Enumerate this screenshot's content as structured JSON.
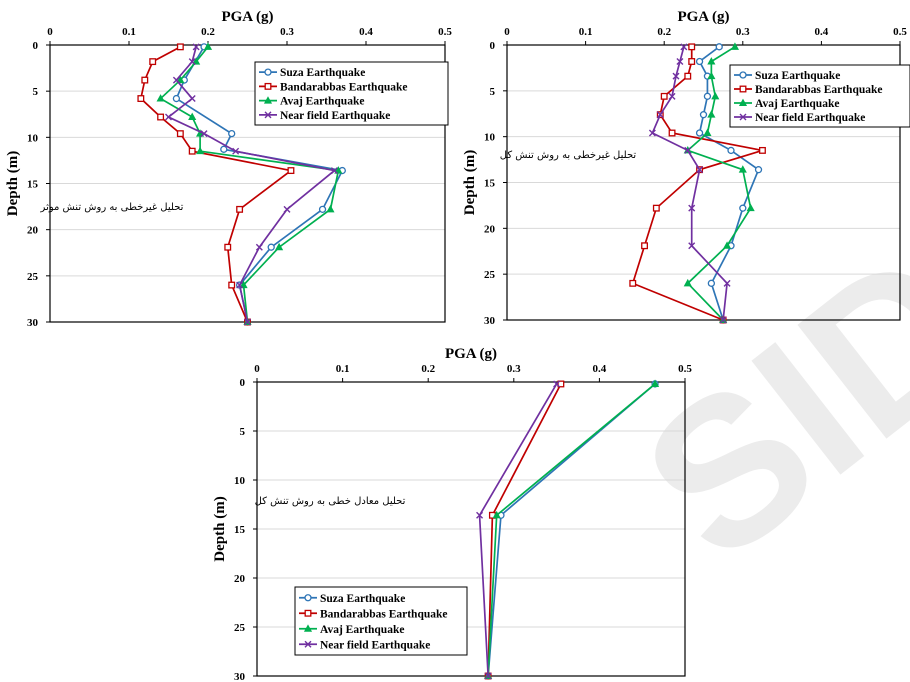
{
  "watermark": "SID",
  "chart_data": [
    {
      "type": "line",
      "xlabel": "PGA (g)",
      "ylabel": "Depth (m)",
      "xlim": [
        0,
        0.5
      ],
      "ylim": [
        0,
        30
      ],
      "y_reversed": true,
      "xticks": [
        "0",
        "0.1",
        "0.2",
        "0.3",
        "0.4",
        "0.5"
      ],
      "yticks": [
        "0",
        "5",
        "10",
        "15",
        "20",
        "25",
        "30"
      ],
      "annotation": "تحلیل غیرخطی به روش تنش موثر",
      "legend_position": "top-right",
      "series": [
        {
          "name": "Suza Earthquake",
          "color": "#2e75b6",
          "marker": "circle",
          "points": [
            [
              0.195,
              0.2
            ],
            [
              0.17,
              3.8
            ],
            [
              0.16,
              5.8
            ],
            [
              0.23,
              9.6
            ],
            [
              0.22,
              11.3
            ],
            [
              0.37,
              13.6
            ],
            [
              0.345,
              17.8
            ],
            [
              0.28,
              21.9
            ],
            [
              0.24,
              26
            ],
            [
              0.25,
              30
            ]
          ]
        },
        {
          "name": "Bandarabbas Earthquake",
          "color": "#c00000",
          "marker": "square",
          "points": [
            [
              0.165,
              0.2
            ],
            [
              0.13,
              1.8
            ],
            [
              0.12,
              3.8
            ],
            [
              0.115,
              5.8
            ],
            [
              0.14,
              7.8
            ],
            [
              0.165,
              9.6
            ],
            [
              0.18,
              11.5
            ],
            [
              0.305,
              13.6
            ],
            [
              0.24,
              17.8
            ],
            [
              0.225,
              21.9
            ],
            [
              0.23,
              26
            ],
            [
              0.25,
              30
            ]
          ]
        },
        {
          "name": "Avaj Earthquake",
          "color": "#00b050",
          "marker": "triangle",
          "points": [
            [
              0.2,
              0.2
            ],
            [
              0.185,
              1.8
            ],
            [
              0.165,
              3.8
            ],
            [
              0.14,
              5.8
            ],
            [
              0.18,
              7.8
            ],
            [
              0.19,
              9.6
            ],
            [
              0.19,
              11.5
            ],
            [
              0.365,
              13.6
            ],
            [
              0.355,
              17.8
            ],
            [
              0.29,
              21.9
            ],
            [
              0.245,
              26
            ],
            [
              0.25,
              30
            ]
          ]
        },
        {
          "name": "Near field Earthquake",
          "color": "#7030a0",
          "marker": "x",
          "points": [
            [
              0.185,
              0.2
            ],
            [
              0.18,
              1.8
            ],
            [
              0.16,
              3.8
            ],
            [
              0.18,
              5.8
            ],
            [
              0.15,
              7.8
            ],
            [
              0.195,
              9.6
            ],
            [
              0.235,
              11.5
            ],
            [
              0.36,
              13.6
            ],
            [
              0.3,
              17.8
            ],
            [
              0.265,
              21.9
            ],
            [
              0.24,
              26
            ],
            [
              0.25,
              30
            ]
          ]
        }
      ]
    },
    {
      "type": "line",
      "xlabel": "PGA (g)",
      "ylabel": "Depth (m)",
      "xlim": [
        0,
        0.5
      ],
      "ylim": [
        0,
        30
      ],
      "y_reversed": true,
      "xticks": [
        "0",
        "0.1",
        "0.2",
        "0.3",
        "0.4",
        "0.5"
      ],
      "yticks": [
        "0",
        "5",
        "10",
        "15",
        "20",
        "25",
        "30"
      ],
      "annotation": "تحلیل غیرخطی به روش تنش کل",
      "legend_position": "top-right",
      "series": [
        {
          "name": "Suza Earthquake",
          "color": "#2e75b6",
          "marker": "circle",
          "points": [
            [
              0.27,
              0.2
            ],
            [
              0.245,
              1.8
            ],
            [
              0.255,
              3.4
            ],
            [
              0.255,
              5.6
            ],
            [
              0.25,
              7.6
            ],
            [
              0.245,
              9.6
            ],
            [
              0.285,
              11.5
            ],
            [
              0.32,
              13.6
            ],
            [
              0.3,
              17.8
            ],
            [
              0.285,
              21.9
            ],
            [
              0.26,
              26
            ],
            [
              0.275,
              30
            ]
          ]
        },
        {
          "name": "Bandarabbas Earthquake",
          "color": "#c00000",
          "marker": "square",
          "points": [
            [
              0.235,
              0.2
            ],
            [
              0.235,
              1.8
            ],
            [
              0.23,
              3.4
            ],
            [
              0.2,
              5.6
            ],
            [
              0.195,
              7.6
            ],
            [
              0.21,
              9.6
            ],
            [
              0.325,
              11.5
            ],
            [
              0.245,
              13.6
            ],
            [
              0.19,
              17.8
            ],
            [
              0.175,
              21.9
            ],
            [
              0.16,
              26
            ],
            [
              0.275,
              30
            ]
          ]
        },
        {
          "name": "Avaj Earthquake",
          "color": "#00b050",
          "marker": "triangle",
          "points": [
            [
              0.29,
              0.2
            ],
            [
              0.26,
              1.8
            ],
            [
              0.26,
              3.4
            ],
            [
              0.265,
              5.6
            ],
            [
              0.26,
              7.6
            ],
            [
              0.255,
              9.6
            ],
            [
              0.23,
              11.5
            ],
            [
              0.3,
              13.6
            ],
            [
              0.31,
              17.8
            ],
            [
              0.28,
              21.9
            ],
            [
              0.23,
              26
            ],
            [
              0.275,
              30
            ]
          ]
        },
        {
          "name": "Near field Earthquake",
          "color": "#7030a0",
          "marker": "x",
          "points": [
            [
              0.225,
              0.2
            ],
            [
              0.22,
              1.8
            ],
            [
              0.215,
              3.4
            ],
            [
              0.21,
              5.6
            ],
            [
              0.195,
              7.6
            ],
            [
              0.185,
              9.6
            ],
            [
              0.23,
              11.5
            ],
            [
              0.245,
              13.6
            ],
            [
              0.235,
              17.8
            ],
            [
              0.235,
              21.9
            ],
            [
              0.28,
              26
            ],
            [
              0.275,
              30
            ]
          ]
        }
      ]
    },
    {
      "type": "line",
      "xlabel": "PGA (g)",
      "ylabel": "Depth (m)",
      "xlim": [
        0,
        0.5
      ],
      "ylim": [
        0,
        30
      ],
      "y_reversed": true,
      "xticks": [
        "0",
        "0.1",
        "0.2",
        "0.3",
        "0.4",
        "0.5"
      ],
      "yticks": [
        "0",
        "5",
        "10",
        "15",
        "20",
        "25",
        "30"
      ],
      "annotation": "تحلیل معادل خطی به روش تنش کل",
      "legend_position": "bottom-left",
      "series": [
        {
          "name": "Suza Earthquake",
          "color": "#2e75b6",
          "marker": "circle",
          "points": [
            [
              0.465,
              0.2
            ],
            [
              0.285,
              13.6
            ],
            [
              0.27,
              30
            ]
          ]
        },
        {
          "name": "Bandarabbas Earthquake",
          "color": "#c00000",
          "marker": "square",
          "points": [
            [
              0.355,
              0.2
            ],
            [
              0.275,
              13.6
            ],
            [
              0.27,
              30
            ]
          ]
        },
        {
          "name": "Avaj Earthquake",
          "color": "#00b050",
          "marker": "triangle",
          "points": [
            [
              0.465,
              0.2
            ],
            [
              0.28,
              13.6
            ],
            [
              0.27,
              30
            ]
          ]
        },
        {
          "name": "Near field Earthquake",
          "color": "#7030a0",
          "marker": "x",
          "points": [
            [
              0.35,
              0.2
            ],
            [
              0.26,
              13.6
            ],
            [
              0.27,
              30
            ]
          ]
        }
      ]
    }
  ]
}
